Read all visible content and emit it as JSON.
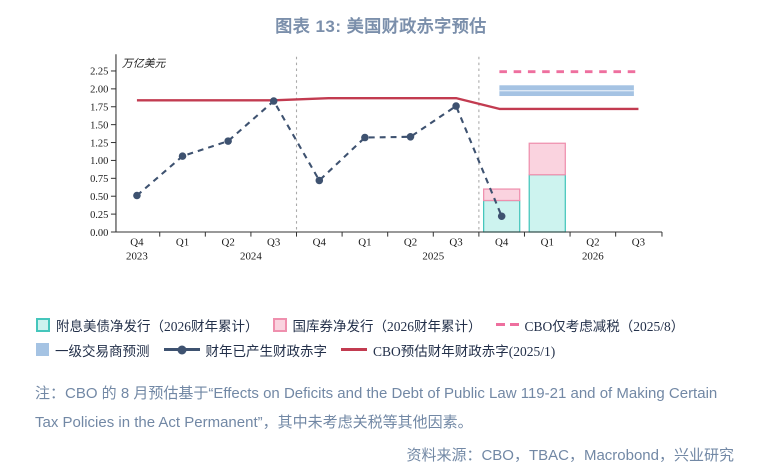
{
  "title": "图表 13: 美国财政赤字预估",
  "note": "注：CBO 的 8 月预估基于“Effects on Deficits and the Debt of Public Law 119-21 and of Making Certain Tax Policies in the Act Permanent”，其中未考虑关税等其他因素。",
  "source": "资料来源：CBO，TBAC，Macrobond，兴业研究",
  "legend": {
    "coupon": "附息美债净发行（2026财年累计）",
    "bills": "国库券净发行（2026财年累计）",
    "cbo_aug": "CBO仅考虑减税（2025/8）",
    "dealer": "一级交易商预测",
    "incurred": "财年已产生财政赤字",
    "cbo_jan": "CBO预估财年财政赤字(2025/1)"
  },
  "colors": {
    "navy": "#3e5270",
    "red": "#c23b50",
    "pink_dashed": "#ee6f9e",
    "dealer_blue": "#a5c3e3",
    "coupon_fill": "#cdf3ef",
    "coupon_stroke": "#45c6bc",
    "bill_fill": "#fad3df",
    "bill_stroke": "#ef90ae",
    "title_text": "#7b8fab",
    "note_text": "#7288a5",
    "axis": "#333333",
    "divider_gray": "#a9a9a9"
  },
  "chart_data": {
    "type": "combo",
    "title": "美国财政赤字预估",
    "unit_label": "万亿美元",
    "ylabel": "万亿美元",
    "ylim": [
      0,
      2.25
    ],
    "ytick_step": 0.25,
    "grid": false,
    "legend_position": "bottom",
    "x_quarters": [
      "Q4",
      "Q1",
      "Q2",
      "Q3",
      "Q4",
      "Q1",
      "Q2",
      "Q3",
      "Q4",
      "Q1",
      "Q2",
      "Q3"
    ],
    "x_years": [
      {
        "label": "2023",
        "span": [
          0,
          0
        ]
      },
      {
        "label": "2024",
        "span": [
          1,
          4
        ]
      },
      {
        "label": "2025",
        "span": [
          5,
          8
        ]
      },
      {
        "label": "2026",
        "span": [
          9,
          11
        ]
      }
    ],
    "fiscal_year_dividers": [
      3.5,
      7.5
    ],
    "series": {
      "incurred": {
        "name": "财年已产生财政赤字",
        "type": "dashed_line_with_markers",
        "color": "#3e5270",
        "x": [
          0,
          1,
          2,
          3,
          4,
          5,
          6,
          7,
          8
        ],
        "x_labels": [
          "2023Q4",
          "2024Q1",
          "2024Q2",
          "2024Q3",
          "2024Q4",
          "2025Q1",
          "2025Q2",
          "2025Q3",
          "2025Q4"
        ],
        "values": [
          0.51,
          1.06,
          1.27,
          1.83,
          0.72,
          1.32,
          1.33,
          1.76,
          0.22
        ]
      },
      "cbo_jan": {
        "name": "CBO预估财年财政赤字(2025/1)",
        "type": "line",
        "color": "#c23b50",
        "points": [
          [
            0,
            1.84
          ],
          [
            3,
            1.84
          ],
          [
            4.2,
            1.87
          ],
          [
            7,
            1.87
          ],
          [
            7.95,
            1.72
          ],
          [
            11,
            1.72
          ]
        ]
      },
      "cbo_aug": {
        "name": "CBO仅考虑减税（2025/8）",
        "type": "dashed_line",
        "color": "#ee6f9e",
        "points": [
          [
            7.95,
            2.24
          ],
          [
            11,
            2.24
          ]
        ]
      },
      "dealer_band": {
        "name": "一级交易商预测",
        "type": "band",
        "color": "#a5c3e3",
        "x": [
          7.95,
          10.9
        ],
        "y": [
          1.9,
          2.05
        ]
      },
      "coupon_bars": {
        "name": "附息美债净发行（2026财年累计）",
        "type": "bar_stacked_bottom",
        "fill": "#cdf3ef",
        "stroke": "#45c6bc",
        "x": [
          8,
          9
        ],
        "x_labels": [
          "2025Q4",
          "2026Q1"
        ],
        "values": [
          0.44,
          0.8
        ]
      },
      "bill_bars": {
        "name": "国库券净发行（2026财年累计）",
        "type": "bar_stacked_top",
        "fill": "#fad3df",
        "stroke": "#ef90ae",
        "x": [
          8,
          9
        ],
        "x_labels": [
          "2025Q4",
          "2026Q1"
        ],
        "values": [
          0.16,
          0.44
        ]
      }
    }
  }
}
